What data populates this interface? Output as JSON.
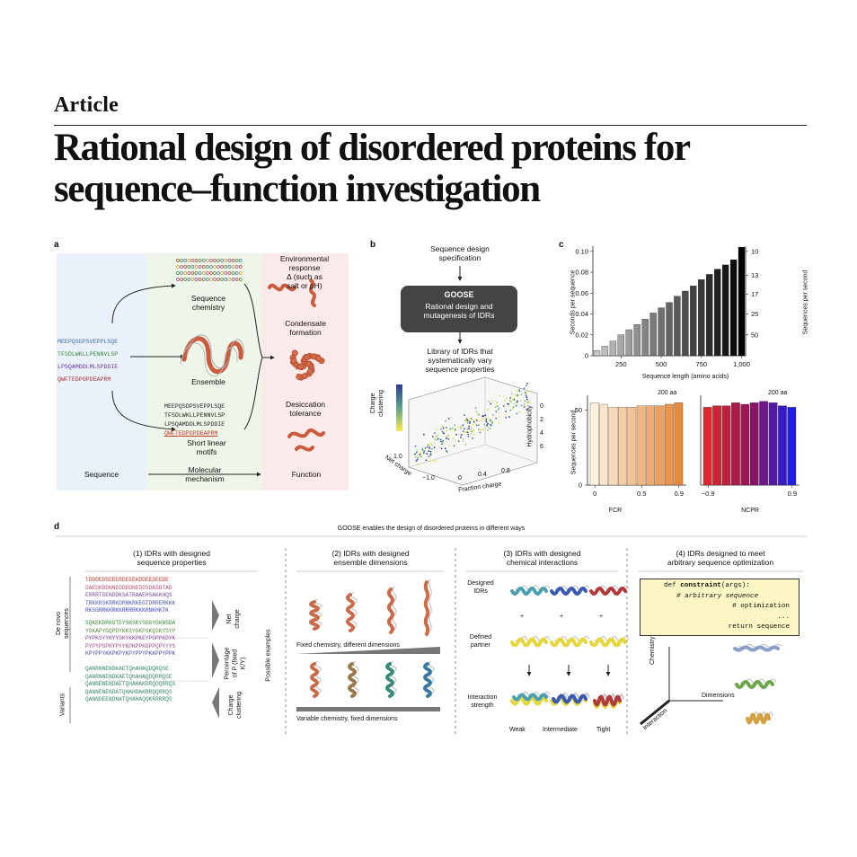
{
  "header": {
    "section": "Article",
    "title_line1": "Rational design of disordered proteins for",
    "title_line2": "sequence–function investigation"
  },
  "panel_a": {
    "letter": "a",
    "sequence_label": "Sequence",
    "mechanism_label": "Molecular\nmechanism",
    "function_label": "Function",
    "sequences": [
      "MEEPQSDPSVEPPLSQE",
      "TFSDLWKLLPENNVLSP",
      "LPSQAMDDLMLSPDDIE",
      "QWFTEDPGPDEAPRM"
    ],
    "seq_chem_label": "Sequence\nchemistry",
    "ensemble_label": "Ensemble",
    "slim_label": "Short linear\nmotifs",
    "slim_sequences": [
      "MEEPQSDPSVEPPLSQE",
      "TFSDLWKLLPENNVLSP",
      "LPSQAMDDLMLSPDDIE",
      "QWFTEDPGPDEAPRM"
    ],
    "env_label": "Environmental\nresponse\nΔ (such as\nsalt or pH)",
    "condensate_label": "Condensate\nformation",
    "desiccation_label": "Desiccation\ntolerance"
  },
  "panel_b": {
    "letter": "b",
    "spec_label": "Sequence design\nspecification",
    "goose_title": "GOOSE",
    "goose_sub": "Rational design and\nmutagenesis of IDRs",
    "library_label": "Library of IDRs that\nsystematically vary\nsequence properties",
    "axis_charge_clustering": "Charge\nclustering",
    "axis_net_charge": "Net charge",
    "axis_fraction_charge": "Fraction charge",
    "axis_hydrophobicity": "Hydrophobicity",
    "ticks_hydro": [
      "0",
      "2",
      "4",
      "6"
    ],
    "ticks_net": [
      "1.0",
      "−1.0"
    ],
    "ticks_frac": [
      "0",
      "0.4",
      "0.8"
    ]
  },
  "panel_c": {
    "letter": "c",
    "top_xlabel": "Sequence length (amino acids)",
    "top_ylabel_left": "Seconds per sequence",
    "top_ylabel_right": "Sequences per second",
    "top_yticks_left": [
      "0",
      "0.02",
      "0.04",
      "0.06",
      "0.08",
      "0.10"
    ],
    "top_yticks_right": [
      "10",
      "13",
      "17",
      "25",
      "50"
    ],
    "top_xticks": [
      "250",
      "500",
      "750",
      "1,000"
    ],
    "bottom_ylabel": "Sequences per second",
    "bottom_yticks": [
      "0",
      "50"
    ],
    "fcr_label": "FCR",
    "ncpr_label": "NCPR",
    "fcr_xticks": [
      "0",
      "0.5",
      "0.9"
    ],
    "ncpr_xticks": [
      "−0.9",
      "0.9"
    ],
    "aa_note": "200 aa",
    "colors": {
      "top_light": "#d6d6d6",
      "top_dark": "#000000"
    }
  },
  "chart_data": [
    {
      "type": "bar",
      "title": "",
      "xlabel": "Sequence length (amino acids)",
      "ylabel": "Seconds per sequence",
      "ylim": [
        0,
        0.105
      ],
      "x": [
        100,
        150,
        200,
        250,
        300,
        350,
        400,
        450,
        500,
        550,
        600,
        650,
        700,
        750,
        800,
        850,
        900,
        950,
        1000
      ],
      "values": [
        0.005,
        0.009,
        0.014,
        0.02,
        0.025,
        0.03,
        0.035,
        0.041,
        0.046,
        0.051,
        0.057,
        0.062,
        0.067,
        0.073,
        0.078,
        0.083,
        0.087,
        0.092,
        0.104
      ]
    },
    {
      "type": "bar",
      "xlabel": "FCR",
      "ylabel": "Sequences per second",
      "ylim": [
        0,
        60
      ],
      "x": [
        0,
        0.1,
        0.2,
        0.3,
        0.4,
        0.5,
        0.6,
        0.7,
        0.8,
        0.9
      ],
      "values": [
        55,
        54,
        52,
        52,
        52,
        53,
        53,
        53,
        54,
        55
      ]
    },
    {
      "type": "bar",
      "xlabel": "NCPR",
      "ylim": [
        0,
        60
      ],
      "x": [
        -0.9,
        -0.7,
        -0.5,
        -0.3,
        -0.1,
        0.1,
        0.3,
        0.5,
        0.7,
        0.9
      ],
      "values": [
        52,
        53,
        53,
        55,
        54,
        55,
        56,
        55,
        53,
        52
      ]
    }
  ],
  "panel_d": {
    "letter": "d",
    "banner": "GOOSE enables the design of disordered proteins in different ways",
    "sub1_title": "(1) IDRs with designed\nsequence properties",
    "sub2_title": "(2) IDRs with designed\nensemble dimensions",
    "sub3_title": "(3) IDRs with designed\nchemical interactions",
    "sub4_title": "(4) IDRs designed to meet\narbitrary sequence optimization",
    "de_novo_label": "De novo\nsequences",
    "variants_label": "Variants",
    "possible_examples": "Possible examples",
    "net_charge": "Net\ncharge",
    "percentage_p": "Percentage\nof P (fixed\nK/Y)",
    "charge_clustering": "Charge\nclustering",
    "seqs_net": [
      "TDDDEDSEEERDEEEKDDEEDEEDE",
      "DAEDKDDNNEDDDDNEDDSDASDTAD",
      "ERRRTGENDDKSATRAAEHSAKKHQS",
      "TRKKRSKRRKDRNKRKEGTDRRERKKK",
      "RKSGRRKKRKKRRRRKKKRNKHKTK"
    ],
    "seqs_pro": [
      "SQKEKDRKGTEYSKSKYSGGYGKNSDA",
      "YSKAPYGQPDYKKSYGKPSKQSKYSYP",
      "PYPKSYYKYYSKYKKPKEYPGPPKDYK",
      "PYPYPSPKYPYYKPKPPKGPPQPYYYS",
      "KPYPPYKKPKPYKPYPPYPKKPPYPPK"
    ],
    "seqs_var": [
      "QANRNNENDKAETQHAHAQDQRQSE",
      "QANRNNENDKAETQHAHAQDQRRQSE",
      "QANNENENDAETQHAHAKRRQDQRRQS",
      "QANNENENDATQHAHDAKRRQQRRQS",
      "QANNDEENDNATQHAHAQQKRRRRQS"
    ],
    "fixed_chem": "Fixed chemistry, different dimensions",
    "variable_chem": "Variable chemistry, fixed dimensions",
    "designed_idrs": "Designed\nIDRs",
    "defined_partner": "Defined\npartner",
    "interaction_strength": "Interaction\nstrength",
    "weak": "Weak",
    "intermediate": "Intermediate",
    "tight": "Tight",
    "plus": "+",
    "code_line1_kw": "def ",
    "code_line1_fn": "constraint",
    "code_line1_rest": "(args):",
    "code_line2": "# arbitrary sequence",
    "code_line3": "# optimization",
    "code_line4": "...",
    "code_line5": "return sequence",
    "axis_chemistry": "Chemistry",
    "axis_dimensions": "Dimensions",
    "axis_interaction": "Interaction"
  }
}
